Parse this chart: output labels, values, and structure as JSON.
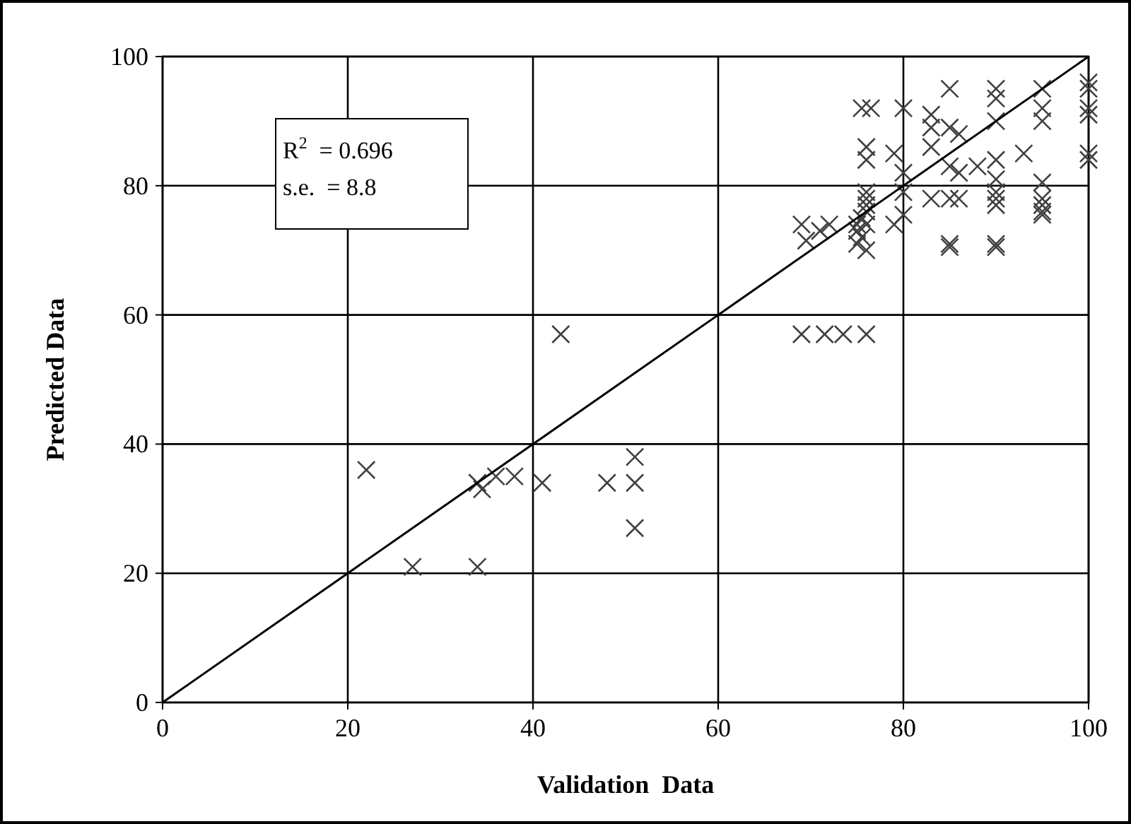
{
  "chart_data": {
    "type": "scatter",
    "xlabel": "Validation  Data",
    "ylabel": "Predicted Data",
    "xlim": [
      0,
      100
    ],
    "ylim": [
      0,
      100
    ],
    "xticks": [
      0,
      20,
      40,
      60,
      80,
      100
    ],
    "yticks": [
      0,
      20,
      40,
      60,
      80,
      100
    ],
    "grid": true,
    "marker": "cross",
    "annotations": [
      "R$^{2}$  = 0.696",
      "s.e.  = 8.8"
    ],
    "series": [
      {
        "color": "#404040",
        "x": [
          22,
          27,
          34,
          34,
          34.5,
          36,
          38,
          41,
          48,
          51,
          51,
          51,
          43,
          69,
          71.5,
          73.5,
          76,
          69,
          69.5,
          71,
          72,
          75,
          75,
          75.5,
          75.5,
          76,
          76,
          76,
          76,
          75,
          76,
          76,
          79,
          80,
          75.5,
          76.5,
          76,
          76,
          79,
          80,
          80,
          80,
          83,
          83,
          83,
          85,
          86,
          85,
          85,
          86,
          83,
          85,
          86,
          85,
          85,
          90,
          90,
          90,
          90,
          90,
          90,
          90,
          90,
          90,
          90,
          95,
          95,
          95,
          95,
          95,
          95,
          95,
          95,
          93,
          100,
          100,
          100,
          100,
          100,
          100,
          88
        ],
        "values": [
          36,
          21,
          21,
          34,
          33,
          35,
          35,
          34,
          34,
          38,
          34,
          27,
          57,
          57,
          57,
          57,
          57,
          74,
          71.5,
          73,
          74,
          73,
          71,
          72,
          75,
          70,
          76,
          78,
          74,
          74,
          77,
          79,
          74,
          75.5,
          92,
          92,
          86,
          84,
          85,
          92,
          82,
          79,
          91,
          89,
          86,
          89,
          88,
          95,
          83,
          82,
          78,
          78,
          78,
          71,
          70.5,
          95,
          93.5,
          90,
          84,
          81,
          79,
          78,
          77,
          71,
          70.5,
          95,
          92,
          90,
          80.5,
          78,
          77,
          76,
          75.5,
          85,
          96,
          95,
          92,
          91,
          85,
          84,
          83
        ]
      },
      {
        "type": "line",
        "color": "#000000",
        "marker": "none",
        "x": [
          0,
          100
        ],
        "values": [
          0,
          100
        ]
      }
    ]
  }
}
